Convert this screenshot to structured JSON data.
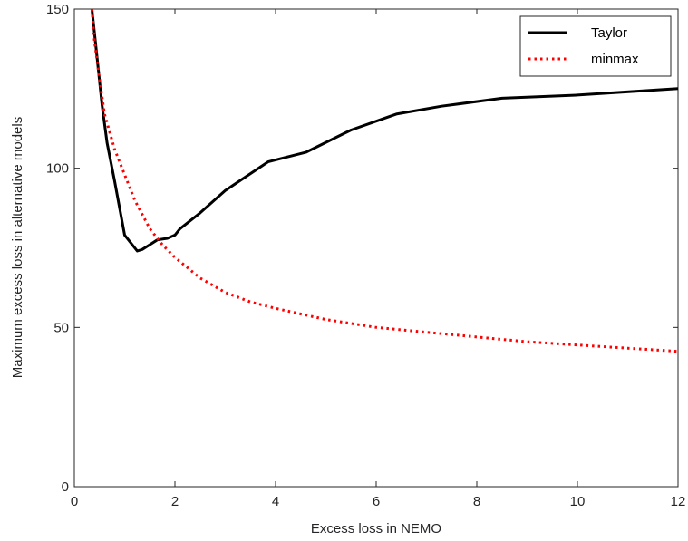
{
  "chart_data": {
    "type": "line",
    "xlabel": "Excess loss in NEMO",
    "ylabel": "Maximum excess loss in alternative models",
    "xlim": [
      0,
      12
    ],
    "ylim": [
      0,
      150
    ],
    "xticks": [
      0,
      2,
      4,
      6,
      8,
      10,
      12
    ],
    "yticks": [
      0,
      50,
      100,
      150
    ],
    "grid": false,
    "legend_position": "top-right",
    "series": [
      {
        "name": "Taylor",
        "color": "#000000",
        "style": "solid",
        "x": [
          0.35,
          0.45,
          0.55,
          0.65,
          0.8,
          1.0,
          1.25,
          1.35,
          1.5,
          1.65,
          1.85,
          2.0,
          2.1,
          2.5,
          3.0,
          3.85,
          4.6,
          5.5,
          6.4,
          7.3,
          8.5,
          10.0,
          12.0
        ],
        "y": [
          150,
          135,
          120,
          108,
          96,
          79,
          74,
          74.5,
          76,
          77.5,
          78,
          79,
          81,
          86,
          93,
          102,
          105,
          112,
          117,
          119.5,
          122,
          123,
          125
        ]
      },
      {
        "name": "minmax",
        "color": "#ff0000",
        "style": "dotted",
        "x": [
          0.35,
          0.4,
          0.5,
          0.6,
          0.8,
          1.0,
          1.2,
          1.5,
          1.75,
          2.0,
          2.5,
          3.0,
          3.5,
          4.0,
          5.0,
          6.0,
          7.0,
          8.0,
          9.0,
          10.0,
          11.0,
          12.0
        ],
        "y": [
          150,
          140,
          128,
          117,
          106,
          98,
          90,
          81,
          76,
          72,
          65.5,
          61,
          58,
          56,
          52.5,
          50,
          48.5,
          47,
          45.5,
          44.5,
          43.5,
          42.5
        ]
      }
    ]
  }
}
